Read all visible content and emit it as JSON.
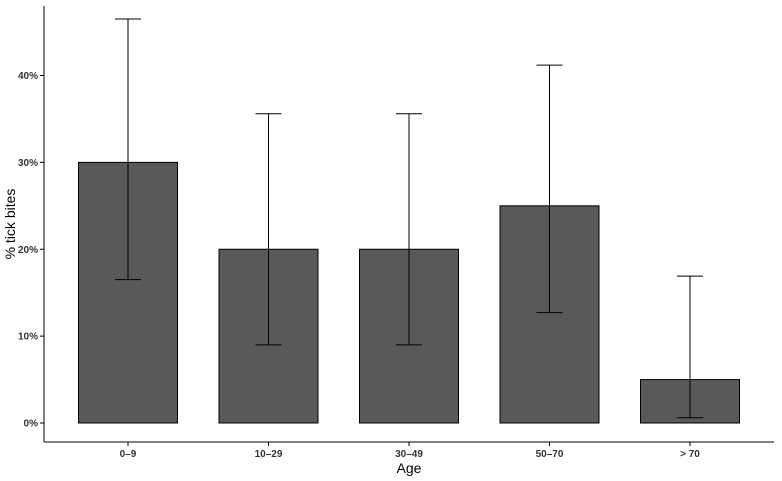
{
  "chart_data": {
    "type": "bar",
    "title": "",
    "xlabel": "Age",
    "ylabel": "% tick bites",
    "categories": [
      "0–9",
      "10–29",
      "30–49",
      "50–70",
      "> 70"
    ],
    "values": [
      30,
      20,
      20,
      25,
      5
    ],
    "error_low": [
      16.5,
      9,
      9,
      12.7,
      0.6
    ],
    "error_high": [
      46.5,
      35.6,
      35.6,
      41.2,
      16.9
    ],
    "ylim": [
      0,
      48
    ],
    "yticks": [
      0,
      10,
      20,
      30,
      40
    ],
    "ytick_labels": [
      "0%",
      "10%",
      "20%",
      "30%",
      "40%"
    ],
    "grid": false,
    "legend": "none",
    "colors": {
      "bar_fill": "#595959",
      "bar_stroke": "#000000",
      "error_bar": "#000000",
      "axis": "#000000",
      "background": "#ffffff"
    }
  }
}
